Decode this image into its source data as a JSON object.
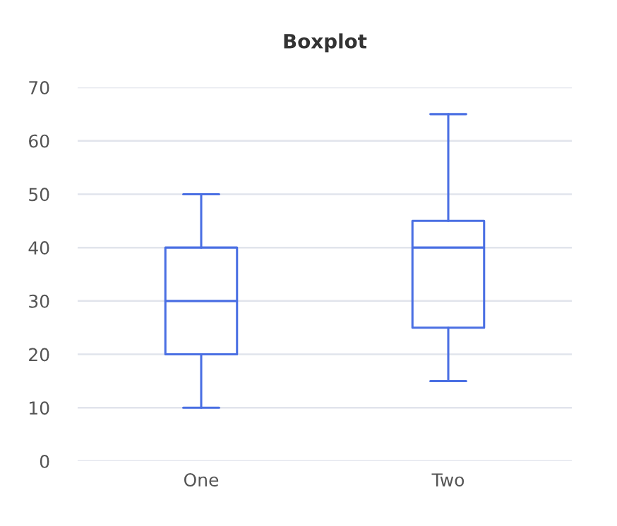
{
  "chart_data": {
    "type": "box",
    "title": "Boxplot",
    "categories": [
      "One",
      "Two"
    ],
    "series": [
      {
        "color": "#4a6fe3",
        "boxes": [
          {
            "low": 10,
            "q1": 20,
            "median": 30,
            "q3": 40,
            "high": 50
          },
          {
            "low": 15,
            "q1": 25,
            "median": 40,
            "q3": 45,
            "high": 65
          }
        ]
      }
    ],
    "ylim": [
      0,
      70
    ],
    "yticks": [
      0,
      10,
      20,
      30,
      40,
      50,
      60,
      70
    ],
    "grid": "y"
  }
}
